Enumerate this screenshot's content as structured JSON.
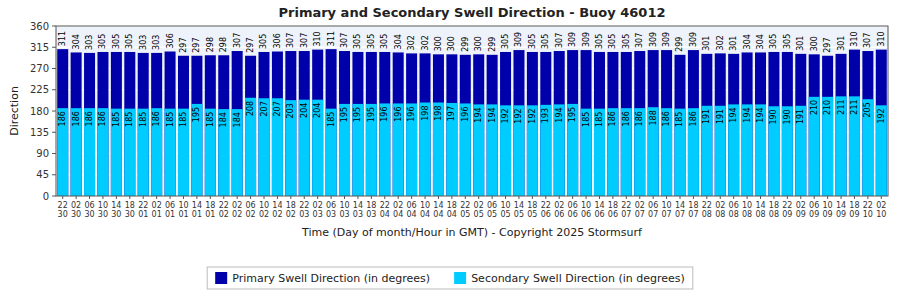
{
  "chart_data": {
    "type": "bar",
    "title": "Primary and Secondary Swell Direction - Buoy 46012",
    "x_label": "Time (Day of month/Hour in GMT) - Copyright 2025 Stormsurf",
    "y_label": "Direction",
    "categories": [
      "22\n30",
      "02\n30",
      "06\n30",
      "10\n30",
      "14\n30",
      "18\n30",
      "22\n01",
      "02\n01",
      "06\n01",
      "10\n01",
      "14\n01",
      "18\n01",
      "22\n02",
      "02\n02",
      "06\n02",
      "10\n02",
      "14\n02",
      "18\n02",
      "22\n03",
      "02\n03",
      "06\n03",
      "10\n03",
      "14\n03",
      "18\n03",
      "22\n04",
      "02\n04",
      "06\n04",
      "10\n04",
      "14\n04",
      "18\n04",
      "22\n05",
      "02\n05",
      "06\n05",
      "10\n05",
      "14\n05",
      "18\n05",
      "22\n06",
      "02\n06",
      "06\n06",
      "10\n06",
      "14\n06",
      "18\n06",
      "22\n07",
      "02\n07",
      "06\n07",
      "10\n07",
      "14\n07",
      "18\n07",
      "22\n08",
      "02\n08",
      "06\n08",
      "10\n08",
      "14\n08",
      "18\n08",
      "22\n09",
      "02\n09",
      "06\n09",
      "10\n09",
      "14\n09",
      "18\n09",
      "22\n10",
      "02\n10"
    ],
    "series": [
      {
        "name": "Primary Swell Direction (in degrees)",
        "color": "#0000AA",
        "values": [
          311,
          304,
          303,
          305,
          305,
          305,
          303,
          303,
          306,
          297,
          297,
          298,
          298,
          307,
          297,
          305,
          306,
          307,
          307,
          310,
          311,
          307,
          305,
          305,
          305,
          304,
          302,
          302,
          300,
          300,
          299,
          300,
          299,
          305,
          309,
          305,
          305,
          307,
          309,
          309,
          305,
          305,
          305,
          307,
          309,
          309,
          299,
          309,
          301,
          302,
          301,
          304,
          304,
          305,
          305,
          301,
          300,
          297,
          301,
          310,
          307,
          310
        ]
      },
      {
        "name": "Secondary Swell Direction (in degrees)",
        "color": "#00CCFF",
        "values": [
          186,
          186,
          186,
          186,
          185,
          185,
          185,
          186,
          185,
          185,
          195,
          185,
          184,
          184,
          208,
          207,
          207,
          203,
          204,
          204,
          185,
          195,
          195,
          195,
          196,
          196,
          196,
          198,
          198,
          197,
          196,
          194,
          194,
          192,
          192,
          192,
          193,
          194,
          195,
          185,
          185,
          186,
          186,
          186,
          188,
          186,
          185,
          186,
          191,
          191,
          194,
          194,
          194,
          190,
          190,
          191,
          210,
          210,
          211,
          211,
          205,
          192
        ]
      }
    ],
    "ylim": [
      0,
      360
    ],
    "yticks": [
      0,
      45,
      90,
      135,
      180,
      225,
      270,
      315,
      360
    ],
    "grid": true,
    "legend": "bottom",
    "data_labels": true
  }
}
